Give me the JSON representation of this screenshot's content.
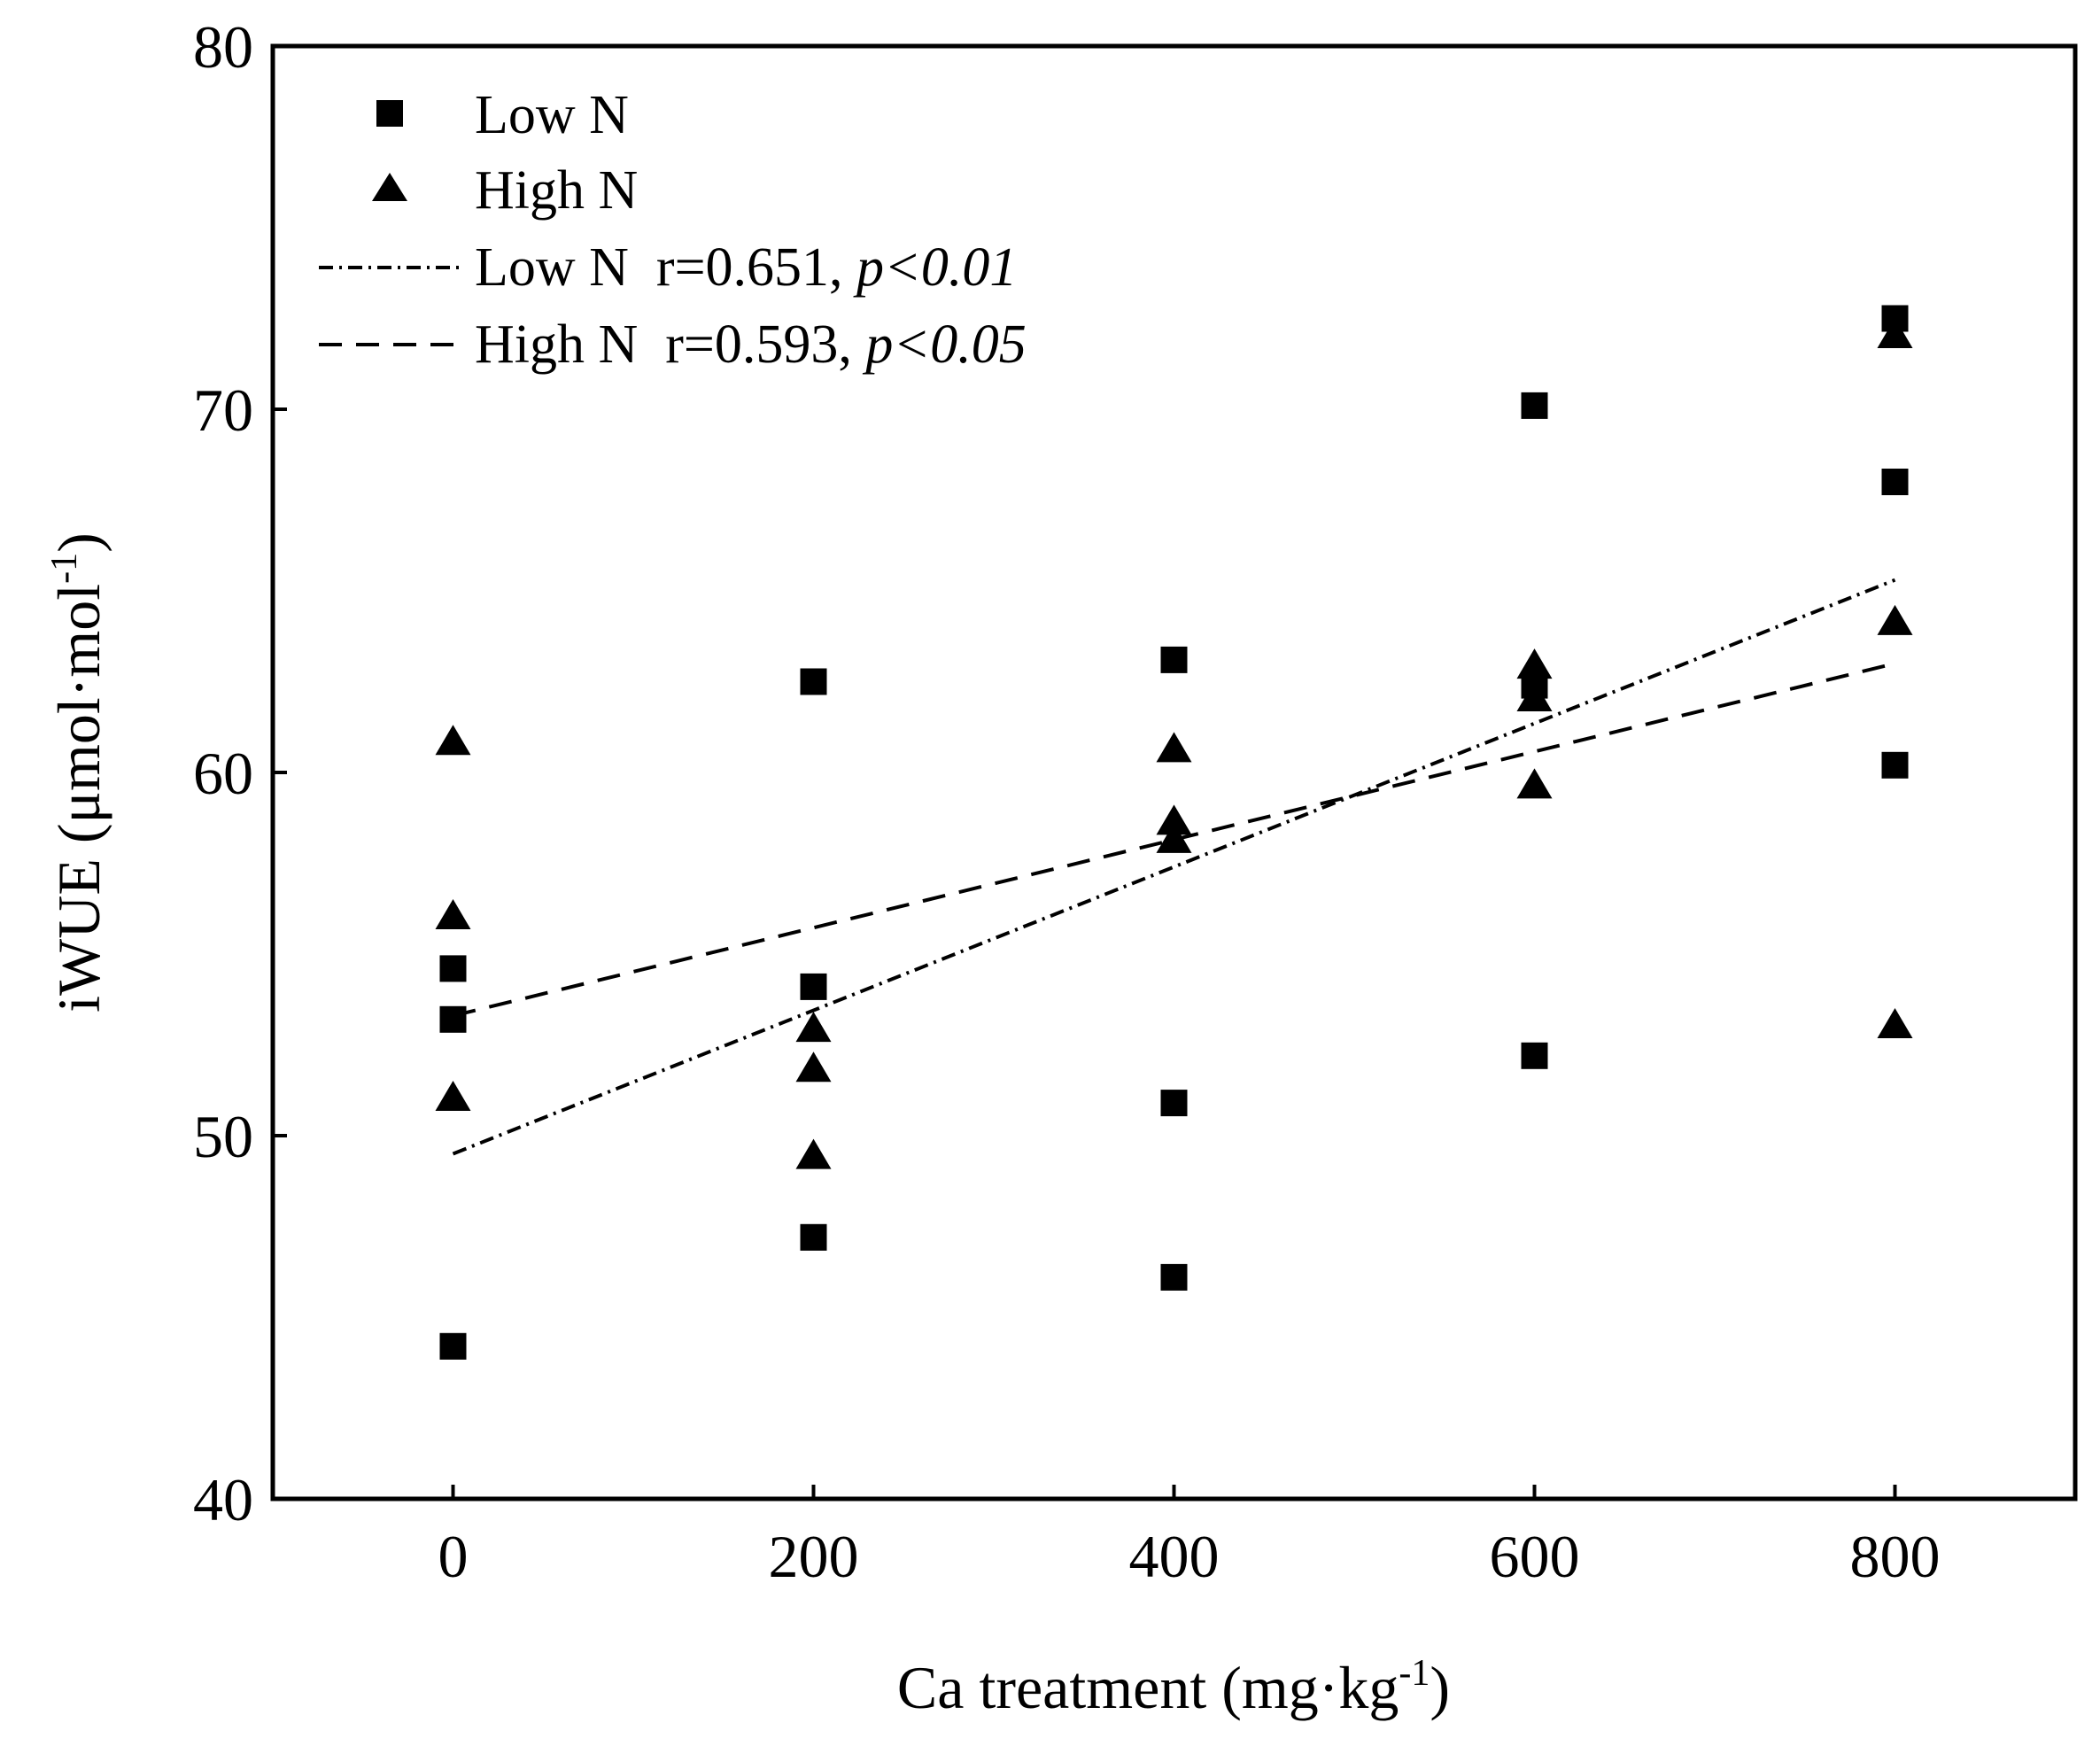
{
  "chart_data": {
    "type": "scatter",
    "title": "",
    "xlabel": {
      "main": "Ca treatment (mg·kg",
      "sup": "-1",
      "tail": ")"
    },
    "ylabel": {
      "main": "iWUE (μmol·mol",
      "sup": "-1",
      "tail": ")"
    },
    "xlim": [
      -100,
      900
    ],
    "ylim": [
      40,
      80
    ],
    "xticks": [
      0,
      200,
      400,
      600,
      800
    ],
    "yticks": [
      40,
      50,
      60,
      70,
      80
    ],
    "xtick_labels": [
      "0",
      "200",
      "400",
      "600",
      "800"
    ],
    "ytick_labels": [
      "40",
      "50",
      "60",
      "70",
      "80"
    ],
    "legend_position": "top-left",
    "series": [
      {
        "name": "Low N",
        "marker": "square",
        "color": "#000000",
        "points": [
          {
            "x": 0,
            "y": 54.6
          },
          {
            "x": 0,
            "y": 53.2
          },
          {
            "x": 0,
            "y": 44.2
          },
          {
            "x": 200,
            "y": 62.5
          },
          {
            "x": 200,
            "y": 54.1
          },
          {
            "x": 200,
            "y": 47.2
          },
          {
            "x": 400,
            "y": 63.1
          },
          {
            "x": 400,
            "y": 50.9
          },
          {
            "x": 400,
            "y": 46.1
          },
          {
            "x": 600,
            "y": 70.1
          },
          {
            "x": 600,
            "y": 62.4
          },
          {
            "x": 600,
            "y": 52.2
          },
          {
            "x": 800,
            "y": 72.5
          },
          {
            "x": 800,
            "y": 68.0
          },
          {
            "x": 800,
            "y": 60.2
          }
        ]
      },
      {
        "name": "High N",
        "marker": "triangle",
        "color": "#000000",
        "points": [
          {
            "x": 0,
            "y": 60.8
          },
          {
            "x": 0,
            "y": 56.0
          },
          {
            "x": 0,
            "y": 51.0
          },
          {
            "x": 200,
            "y": 52.9
          },
          {
            "x": 200,
            "y": 51.8
          },
          {
            "x": 200,
            "y": 49.4
          },
          {
            "x": 400,
            "y": 60.6
          },
          {
            "x": 400,
            "y": 58.6
          },
          {
            "x": 400,
            "y": 58.1
          },
          {
            "x": 600,
            "y": 62.9
          },
          {
            "x": 600,
            "y": 62.0
          },
          {
            "x": 600,
            "y": 59.6
          },
          {
            "x": 800,
            "y": 72.0
          },
          {
            "x": 800,
            "y": 64.1
          },
          {
            "x": 800,
            "y": 53.0
          }
        ]
      }
    ],
    "fit_lines": [
      {
        "name": "Low N",
        "stat": "r=0.651, ",
        "p": "p<0.01",
        "style": "dashdot",
        "x": [
          0,
          800
        ],
        "y": [
          49.5,
          65.3
        ]
      },
      {
        "name": "High N",
        "stat": "r=0.593, ",
        "p": "p<0.05",
        "style": "dashed",
        "x": [
          0,
          800
        ],
        "y": [
          53.3,
          63.0
        ]
      }
    ]
  }
}
